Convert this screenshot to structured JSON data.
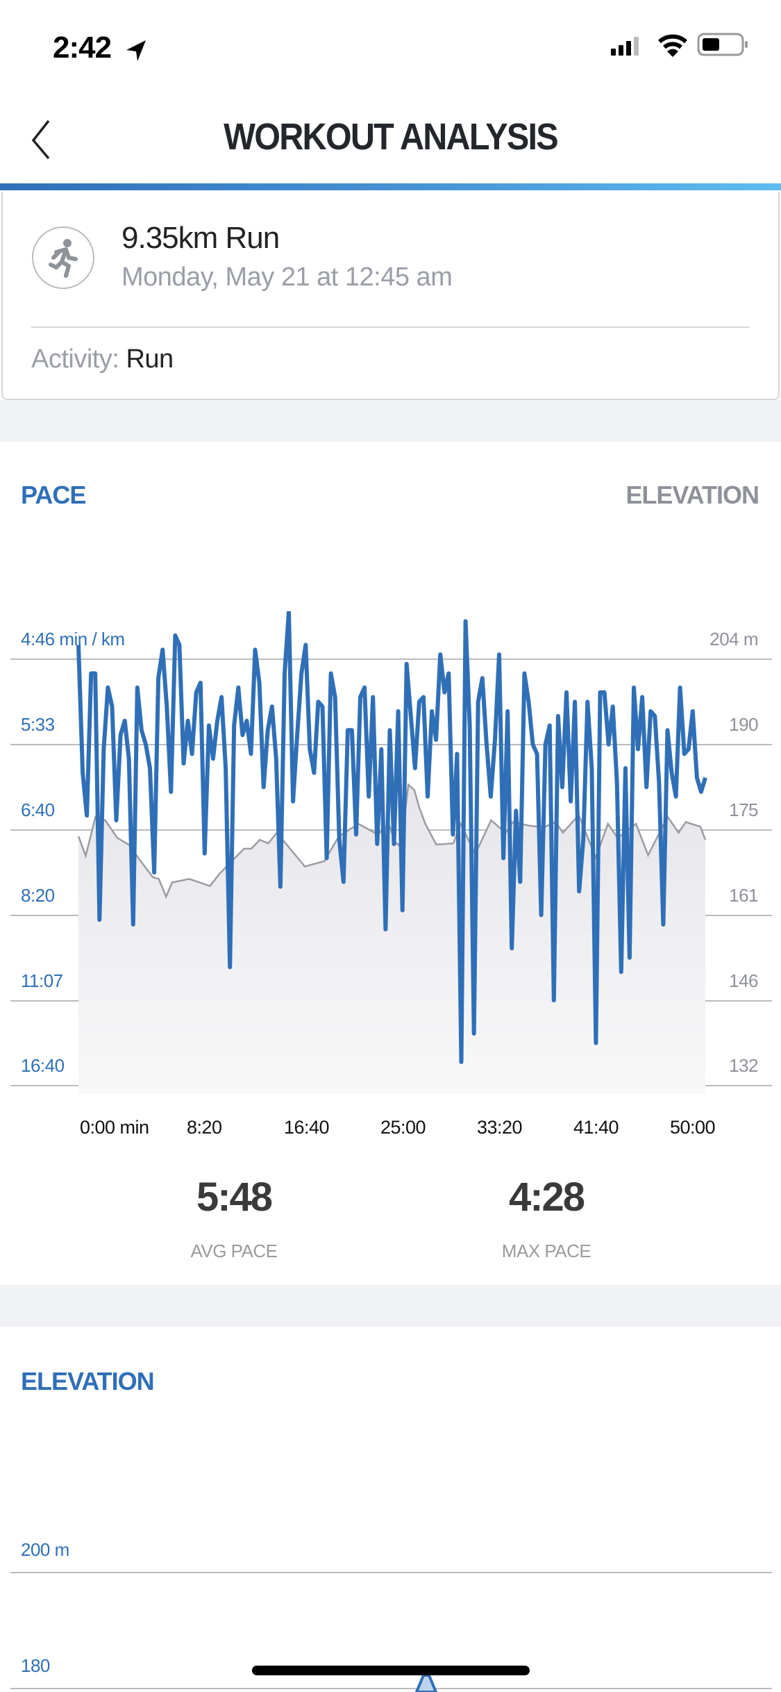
{
  "status_bar": {
    "time": "2:42",
    "icons": [
      "location-arrow-icon",
      "cellular-signal-icon",
      "wifi-icon",
      "battery-icon"
    ]
  },
  "nav": {
    "title": "WORKOUT ANALYSIS",
    "back_icon": "chevron-left-icon"
  },
  "workout": {
    "title": "9.35km Run",
    "date": "Monday, May 21 at 12:45 am",
    "activity_label": "Activity:",
    "activity_value": "Run",
    "icon": "running-person-icon"
  },
  "pace_section": {
    "label": "PACE",
    "toggle_label": "ELEVATION",
    "avg_pace": "5:48",
    "avg_pace_label": "AVG PACE",
    "max_pace": "4:28",
    "max_pace_label": "MAX PACE"
  },
  "elevation_section": {
    "label": "ELEVATION",
    "y_ticks": [
      "200 m",
      "180"
    ]
  },
  "colors": {
    "accent": "#2f6fb7",
    "elevation_line": "#9a9ca2",
    "grid": "#b9bbbf"
  },
  "chart_data": {
    "type": "line",
    "title": "PACE",
    "xlabel": "",
    "x_unit": "min",
    "x_tick_labels": [
      "0:00 min",
      "8:20",
      "16:40",
      "25:00",
      "33:20",
      "41:40",
      "50:00"
    ],
    "x_range_min": [
      0,
      51.5
    ],
    "left_axis": {
      "label": "Pace (min / km)",
      "tick_labels": [
        "4:46 min / km",
        "5:33",
        "6:40",
        "8:20",
        "11:07",
        "16:40"
      ],
      "speed_kmh_ticks": [
        12.6,
        10.8,
        9.0,
        7.2,
        5.4,
        3.6
      ]
    },
    "right_axis": {
      "label": "Elevation (m)",
      "tick_labels": [
        "204 m",
        "190",
        "175",
        "161",
        "146",
        "132"
      ],
      "range": [
        132,
        204
      ]
    },
    "grid": true,
    "series": [
      {
        "name": "Pace (speed km/h, evenly spaced over duration)",
        "color": "#2f6fb7",
        "values": [
          12.9,
          10.2,
          9.3,
          12.3,
          12.3,
          7.1,
          10.7,
          12.0,
          11.6,
          9.2,
          11.0,
          11.3,
          10.5,
          7.0,
          12.0,
          11.1,
          10.8,
          10.3,
          8.1,
          12.2,
          12.8,
          11.6,
          9.8,
          13.1,
          12.9,
          10.4,
          11.3,
          10.6,
          11.9,
          12.1,
          8.5,
          11.2,
          10.5,
          11.3,
          11.8,
          10.3,
          6.1,
          11.2,
          12.0,
          11.0,
          11.3,
          10.6,
          12.8,
          12.1,
          9.9,
          11.1,
          11.6,
          10.5,
          7.8,
          12.3,
          13.6,
          9.6,
          11.0,
          12.3,
          12.9,
          10.7,
          10.2,
          11.7,
          11.6,
          8.4,
          12.3,
          11.8,
          8.8,
          7.9,
          11.1,
          11.1,
          8.9,
          11.8,
          12.0,
          9.7,
          11.8,
          8.7,
          10.7,
          6.9,
          11.1,
          8.7,
          11.5,
          7.3,
          12.5,
          11.4,
          10.3,
          11.7,
          11.8,
          9.7,
          11.5,
          10.9,
          12.7,
          11.9,
          12.3,
          8.9,
          10.6,
          4.1,
          13.4,
          11.2,
          4.7,
          11.7,
          12.2,
          10.8,
          9.7,
          10.9,
          12.7,
          8.4,
          11.5,
          6.5,
          9.4,
          7.9,
          12.3,
          11.7,
          10.8,
          10.6,
          7.2,
          10.8,
          11.2,
          5.4,
          11.4,
          9.9,
          11.9,
          9.6,
          11.7,
          7.7,
          8.8,
          11.7,
          10.3,
          4.5,
          11.9,
          11.9,
          10.8,
          11.6,
          10.0,
          6.0,
          10.3,
          6.3,
          12.0,
          10.7,
          11.8,
          9.9,
          11.5,
          11.4,
          10.0,
          7.0,
          11.1,
          10.2,
          9.7,
          12.0,
          10.6,
          10.7,
          11.5,
          10.1,
          9.8,
          10.1
        ]
      },
      {
        "name": "Elevation (m)",
        "color": "#9a9ca2",
        "points": [
          [
            0,
            174.1
          ],
          [
            0.6,
            170.8
          ],
          [
            1.4,
            177.4
          ],
          [
            2.2,
            176.8
          ],
          [
            3.2,
            173.8
          ],
          [
            4.2,
            172.6
          ],
          [
            5.0,
            170.2
          ],
          [
            6.1,
            167.2
          ],
          [
            6.6,
            166.9
          ],
          [
            7.2,
            163.9
          ],
          [
            7.7,
            166.3
          ],
          [
            9.1,
            166.9
          ],
          [
            10.8,
            165.7
          ],
          [
            11.6,
            167.8
          ],
          [
            13.6,
            172.0
          ],
          [
            14.2,
            172.0
          ],
          [
            14.9,
            173.5
          ],
          [
            15.6,
            172.9
          ],
          [
            16.3,
            174.7
          ],
          [
            18.6,
            169.0
          ],
          [
            20.2,
            169.9
          ],
          [
            21.4,
            174.1
          ],
          [
            23.0,
            176.2
          ],
          [
            24.6,
            174.4
          ],
          [
            25.5,
            176.2
          ],
          [
            26.0,
            173.2
          ],
          [
            26.3,
            172.6
          ],
          [
            26.6,
            174.1
          ],
          [
            27.1,
            182.8
          ],
          [
            27.6,
            181.9
          ],
          [
            28.0,
            178.9
          ],
          [
            28.5,
            176.2
          ],
          [
            29.4,
            172.7
          ],
          [
            30.8,
            172.9
          ],
          [
            31.4,
            176.2
          ],
          [
            32.6,
            171.1
          ],
          [
            33.9,
            176.8
          ],
          [
            35.1,
            174.7
          ],
          [
            35.7,
            176.5
          ],
          [
            37.0,
            175.9
          ],
          [
            38.2,
            175.6
          ],
          [
            39.2,
            176.5
          ],
          [
            39.8,
            174.7
          ],
          [
            41.1,
            177.7
          ],
          [
            42.5,
            170.5
          ],
          [
            43.5,
            176.2
          ],
          [
            44.3,
            173.8
          ],
          [
            45.8,
            176.2
          ],
          [
            46.8,
            170.9
          ],
          [
            48.4,
            177.4
          ],
          [
            49.3,
            174.7
          ],
          [
            49.9,
            176.5
          ],
          [
            51.1,
            175.7
          ],
          [
            51.5,
            173.5
          ]
        ]
      }
    ]
  }
}
